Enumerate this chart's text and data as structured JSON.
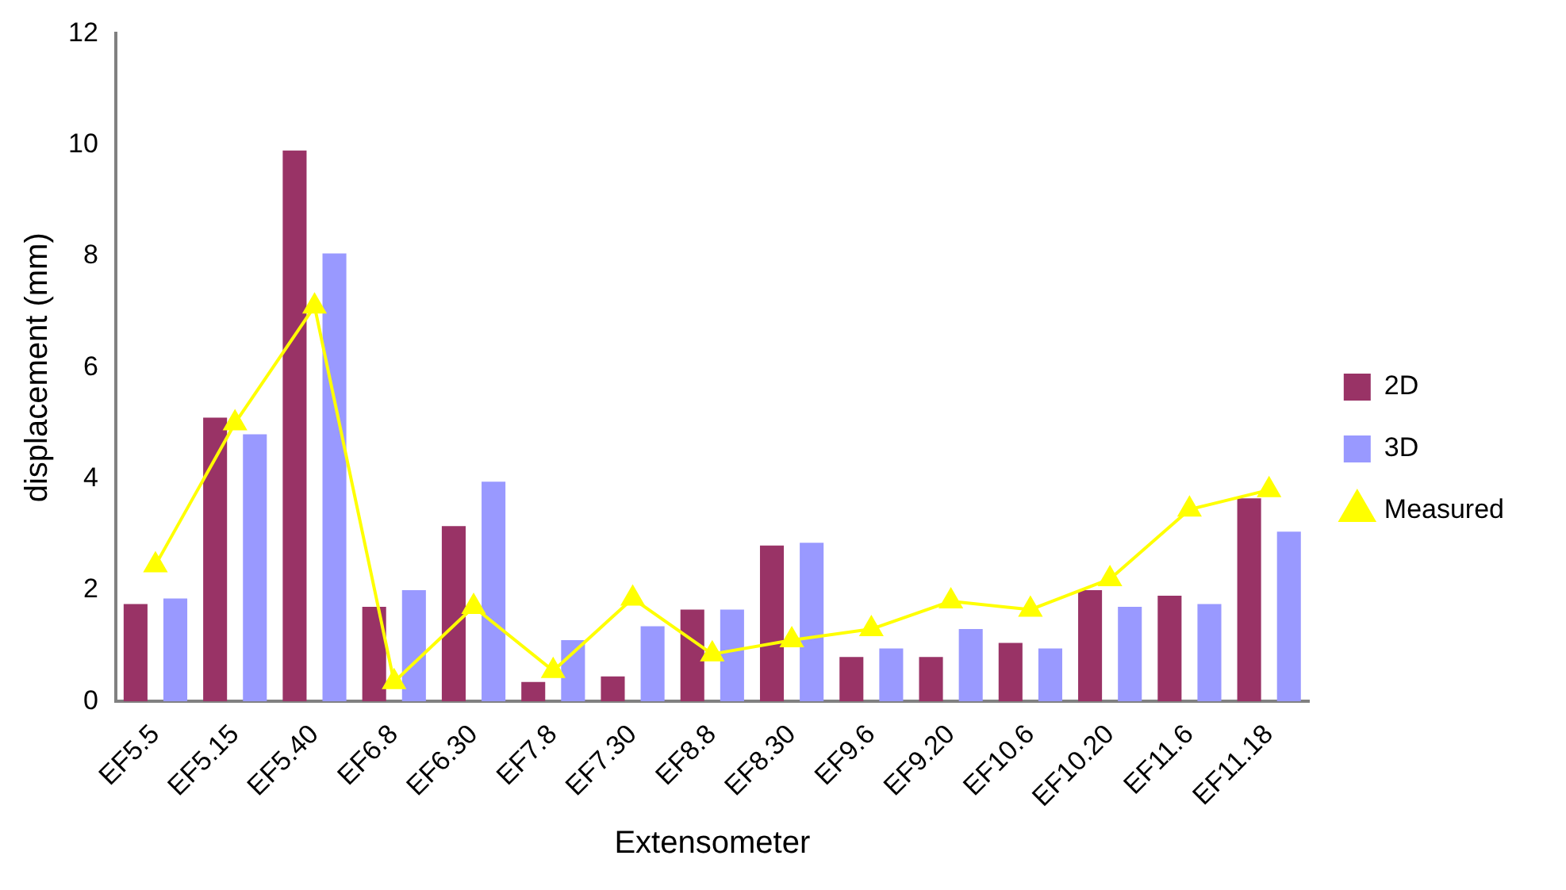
{
  "chart_data": {
    "type": "bar",
    "xlabel": "Extensometer",
    "ylabel": "displacement (mm)",
    "categories": [
      "EF5.5",
      "EF5.15",
      "EF5.40",
      "EF6.8",
      "EF6.30",
      "EF7.8",
      "EF7.30",
      "EF8.8",
      "EF8.30",
      "EF9.6",
      "EF9.20",
      "EF10.6",
      "EF10.20",
      "EF11.6",
      "EF11.18"
    ],
    "series": [
      {
        "name": "2D",
        "color": "#993366",
        "values": [
          1.75,
          5.1,
          9.9,
          1.7,
          3.15,
          0.35,
          0.45,
          1.65,
          2.8,
          0.8,
          0.8,
          1.05,
          2.0,
          1.9,
          3.65
        ]
      },
      {
        "name": "3D",
        "color": "#9999ff",
        "values": [
          1.85,
          4.8,
          8.05,
          2.0,
          3.95,
          1.1,
          1.35,
          1.65,
          2.85,
          0.95,
          1.3,
          0.95,
          1.7,
          1.75,
          3.05
        ]
      },
      {
        "name": "Measured",
        "type": "line",
        "color": "#ffff00",
        "values": [
          2.45,
          5.0,
          7.1,
          0.35,
          1.7,
          0.55,
          1.85,
          0.85,
          1.1,
          1.3,
          1.8,
          1.65,
          2.2,
          3.45,
          3.8
        ]
      }
    ],
    "ylim": [
      0,
      12
    ],
    "yticks": [
      0,
      2,
      4,
      6,
      8,
      10,
      12
    ],
    "grid": false,
    "legend": "right",
    "marker": "triangle",
    "line_style": "solid"
  }
}
